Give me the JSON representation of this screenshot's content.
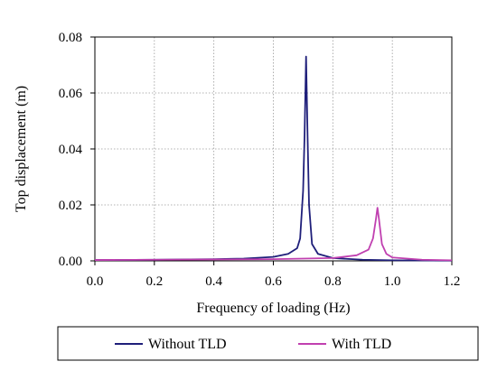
{
  "chart_data": {
    "type": "line",
    "xlabel": "Frequency of loading (Hz)",
    "ylabel": "Top displacement (m)",
    "xlim": [
      0.0,
      1.2
    ],
    "ylim": [
      0.0,
      0.08
    ],
    "x_ticks": [
      "0.0",
      "0.2",
      "0.4",
      "0.6",
      "0.8",
      "1.0",
      "1.2"
    ],
    "y_ticks": [
      "0.00",
      "0.02",
      "0.04",
      "0.06",
      "0.08"
    ],
    "grid": true,
    "legend_position": "bottom",
    "series": [
      {
        "name": "Without TLD",
        "color": "#1f1f7a",
        "x": [
          0.0,
          0.2,
          0.4,
          0.5,
          0.6,
          0.65,
          0.68,
          0.69,
          0.7,
          0.705,
          0.71,
          0.715,
          0.72,
          0.73,
          0.75,
          0.8,
          0.9,
          1.0,
          1.2
        ],
        "y": [
          0.0003,
          0.0004,
          0.0006,
          0.0008,
          0.0014,
          0.0025,
          0.0045,
          0.008,
          0.025,
          0.045,
          0.073,
          0.045,
          0.02,
          0.006,
          0.0025,
          0.001,
          0.0004,
          0.0002,
          0.0001
        ]
      },
      {
        "name": "With TLD",
        "color": "#c040b0",
        "x": [
          0.0,
          0.2,
          0.4,
          0.6,
          0.8,
          0.88,
          0.92,
          0.935,
          0.945,
          0.95,
          0.955,
          0.965,
          0.98,
          1.0,
          1.1,
          1.2
        ],
        "y": [
          0.0003,
          0.0004,
          0.0005,
          0.0006,
          0.001,
          0.002,
          0.004,
          0.008,
          0.015,
          0.019,
          0.015,
          0.006,
          0.0025,
          0.0012,
          0.0004,
          0.0002
        ]
      }
    ]
  }
}
